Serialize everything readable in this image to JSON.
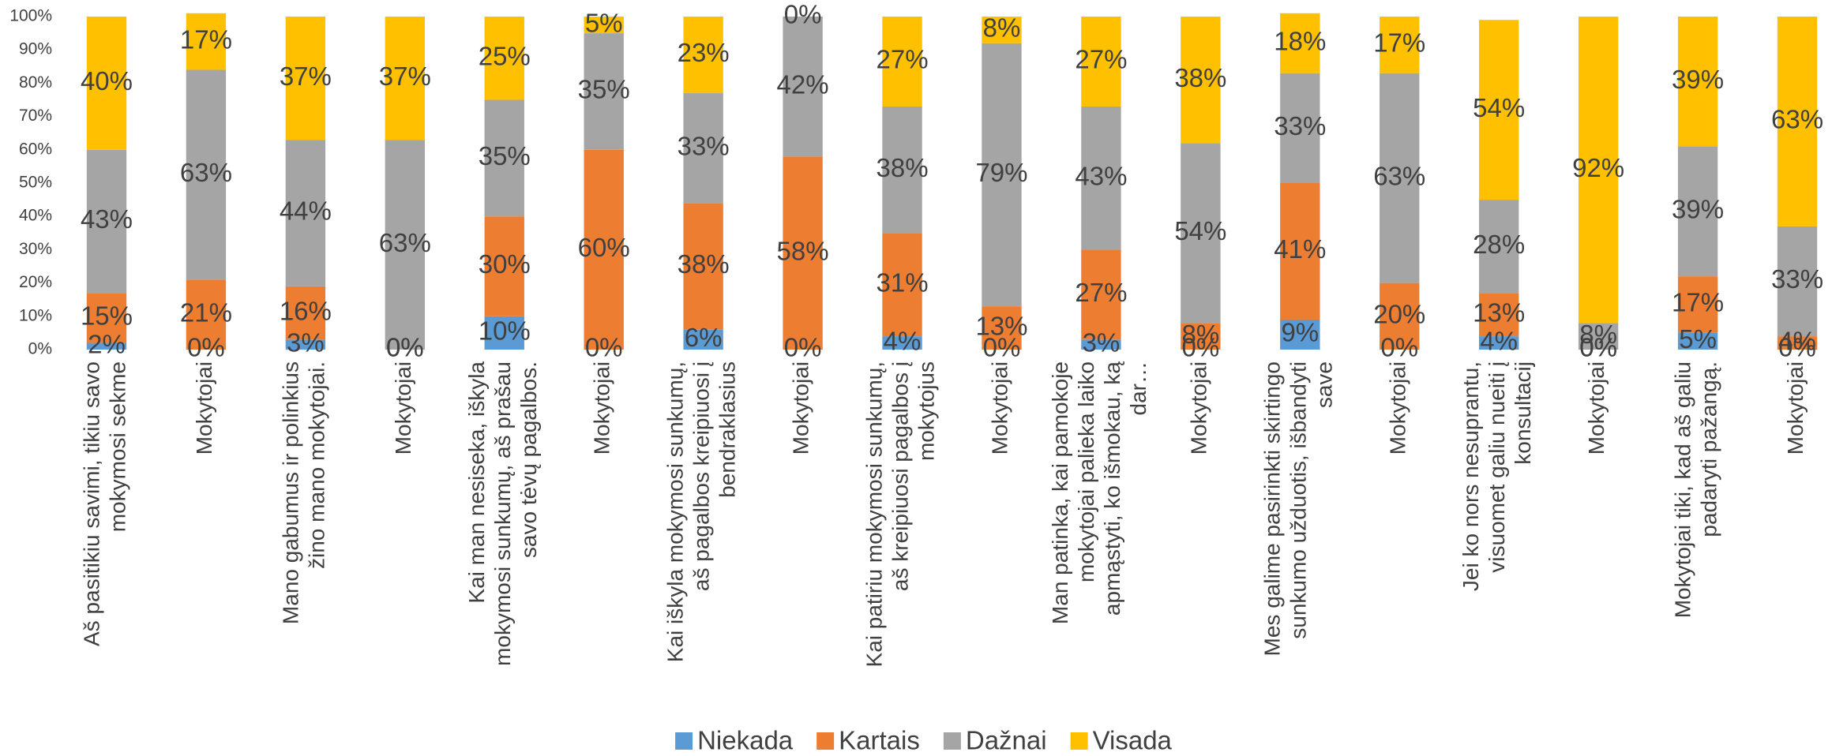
{
  "chart_data": {
    "type": "stacked_bar_100",
    "categories": [
      "Aš pasitikiu savimi, tikiu savo mokymosi sekme",
      "Mokytojai",
      "Mano gabumus ir polinkius žino mano mokytojai.",
      "Mokytojai",
      "Kai man nesiseka, iškyla mokymosi sunkumų, aš prašau savo tėvų pagalbos.",
      "Mokytojai",
      "Kai iškyla mokymosi sunkumų, aš pagalbos kreipiuosi į bendraklasius",
      "Mokytojai",
      "Kai patiriu mokymosi sunkumų, aš kreipiuosi pagalbos į mokytojus",
      "Mokytojai",
      "Man patinka, kai pamokoje mokytojai palieka laiko apmąstyti, ko išmokau, ką dar…",
      "Mokytojai",
      "Mes galime pasirinkti skirtingo sunkumo užduotis, išbandyti save",
      "Mokytojai",
      "Jei ko nors nesuprantu, visuomet galiu nueiti į konsultacij",
      "Mokytojai",
      "Mokytojai tiki, kad aš galiu padaryti pažangą.",
      "Mokytojai"
    ],
    "series": [
      {
        "name": "Niekada",
        "color": "#5b9bd5",
        "values": [
          2,
          0,
          3,
          0,
          10,
          0,
          6,
          0,
          4,
          0,
          3,
          0,
          9,
          0,
          4,
          0,
          5,
          0
        ],
        "value_labels": [
          "2%",
          "0%",
          "3%",
          "0%",
          "10%",
          "0%",
          "6%",
          "0%",
          "4%",
          "0%",
          "3%",
          "0%",
          "9%",
          "0%",
          "4%",
          "0%",
          "5%",
          "0%"
        ]
      },
      {
        "name": "Kartais",
        "color": "#ed7d31",
        "values": [
          15,
          21,
          16,
          0,
          30,
          60,
          38,
          58,
          31,
          13,
          27,
          8,
          41,
          20,
          13,
          0,
          17,
          4
        ],
        "value_labels": [
          "15%",
          "21%",
          "16%",
          "0%",
          "30%",
          "60%",
          "38%",
          "58%",
          "31%",
          "13%",
          "27%",
          "8%",
          "41%",
          "20%",
          "13%",
          "0%",
          "17%",
          "4%"
        ]
      },
      {
        "name": "Dažnai",
        "color": "#a5a5a5",
        "values": [
          43,
          63,
          44,
          63,
          35,
          35,
          33,
          42,
          38,
          79,
          43,
          54,
          33,
          63,
          28,
          8,
          39,
          33
        ],
        "value_labels": [
          "43%",
          "63%",
          "44%",
          "63%",
          "35%",
          "35%",
          "33%",
          "42%",
          "38%",
          "79%",
          "43%",
          "54%",
          "33%",
          "63%",
          "28%",
          "8%",
          "39%",
          "33%"
        ]
      },
      {
        "name": "Visada",
        "color": "#ffc000",
        "values": [
          40,
          17,
          37,
          37,
          25,
          5,
          23,
          0,
          27,
          8,
          27,
          38,
          18,
          17,
          54,
          92,
          39,
          63
        ],
        "value_labels": [
          "40%",
          "17%",
          "37%",
          "37%",
          "25%",
          "5%",
          "23%",
          "0%",
          "27%",
          "8%",
          "27%",
          "38%",
          "18%",
          "17%",
          "54%",
          "92%",
          "39%",
          "63%"
        ]
      }
    ],
    "ylim": [
      0,
      100
    ],
    "yticks": [
      {
        "value": 0,
        "label": "0%"
      },
      {
        "value": 10,
        "label": "10%"
      },
      {
        "value": 20,
        "label": "20%"
      },
      {
        "value": 30,
        "label": "30%"
      },
      {
        "value": 40,
        "label": "40%"
      },
      {
        "value": 50,
        "label": "50%"
      },
      {
        "value": 60,
        "label": "60%"
      },
      {
        "value": 70,
        "label": "70%"
      },
      {
        "value": 80,
        "label": "80%"
      },
      {
        "value": 90,
        "label": "90%"
      },
      {
        "value": 100,
        "label": "100%"
      }
    ],
    "grid": false,
    "legend": "bottom"
  }
}
